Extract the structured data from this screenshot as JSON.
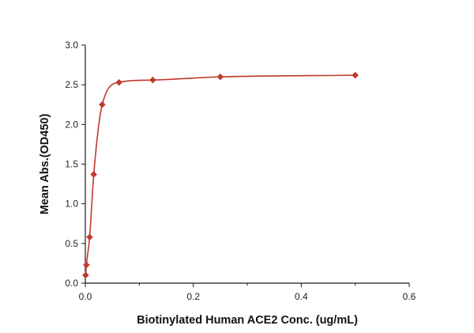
{
  "chart_data": {
    "type": "scatter",
    "xlabel": "Biotinylated Human ACE2 Conc. (ug/mL)",
    "ylabel": "Mean Abs.(OD450)",
    "xlim": [
      0,
      0.6
    ],
    "ylim": [
      0,
      3.0
    ],
    "x_ticks": [
      "0.0",
      "0.2",
      "0.4",
      "0.6"
    ],
    "y_ticks": [
      "0.0",
      "0.5",
      "1.0",
      "1.5",
      "2.0",
      "2.5",
      "3.0"
    ],
    "grid": false,
    "legend": "none",
    "colors": {
      "series": "#c0392b",
      "axis": "#1a1a1a"
    },
    "series": [
      {
        "marker": "diamond",
        "fit": "sigmoidal curve",
        "points": [
          {
            "x": 0.0005,
            "y": 0.1
          },
          {
            "x": 0.002,
            "y": 0.23
          },
          {
            "x": 0.008,
            "y": 0.58
          },
          {
            "x": 0.0156,
            "y": 1.37
          },
          {
            "x": 0.0313,
            "y": 2.25
          },
          {
            "x": 0.0625,
            "y": 2.53
          },
          {
            "x": 0.125,
            "y": 2.56
          },
          {
            "x": 0.25,
            "y": 2.6
          },
          {
            "x": 0.5,
            "y": 2.62
          }
        ]
      }
    ]
  }
}
